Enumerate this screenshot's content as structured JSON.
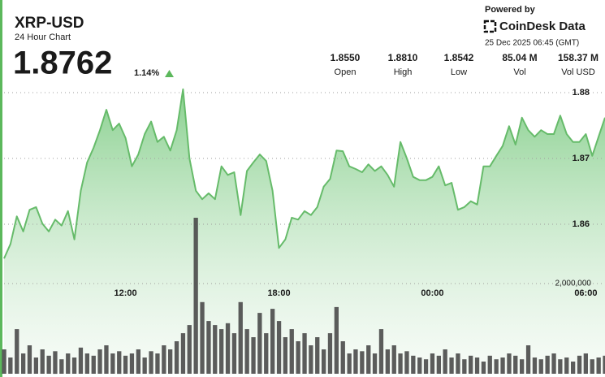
{
  "header": {
    "symbol": "XRP-USD",
    "subtitle": "24 Hour Chart",
    "price": "1.8762",
    "change": "1.14%"
  },
  "stats": [
    {
      "value": "1.8550",
      "label": "Open"
    },
    {
      "value": "1.8810",
      "label": "High"
    },
    {
      "value": "1.8542",
      "label": "Low"
    },
    {
      "value": "85.04 M",
      "label": "Vol"
    },
    {
      "value": "158.37 M",
      "label": "Vol USD"
    }
  ],
  "branding": {
    "powered_by": "Powered by",
    "brand": "CoinDesk Data",
    "timestamp": "25 Dec 2025 06:45 (GMT)"
  },
  "chart_data": {
    "type": "line",
    "x": [
      7.25,
      7.5,
      7.75,
      8,
      8.25,
      8.5,
      8.75,
      9,
      9.25,
      9.5,
      9.75,
      10,
      10.25,
      10.5,
      10.75,
      11,
      11.25,
      11.5,
      11.75,
      12,
      12.25,
      12.5,
      12.75,
      13,
      13.25,
      13.5,
      13.75,
      14,
      14.25,
      14.5,
      14.75,
      15,
      15.25,
      15.5,
      15.75,
      16,
      16.25,
      16.5,
      16.75,
      17,
      17.25,
      17.5,
      17.75,
      18,
      18.25,
      18.5,
      18.75,
      19,
      19.25,
      19.5,
      19.75,
      20,
      20.25,
      20.5,
      20.75,
      21,
      21.25,
      21.5,
      21.75,
      22,
      22.25,
      22.5,
      22.75,
      23,
      23.25,
      23.5,
      23.75,
      24,
      24.25,
      24.5,
      24.75,
      25,
      25.25,
      25.5,
      25.75,
      26,
      26.25,
      26.5,
      26.75,
      27,
      27.25,
      27.5,
      27.75,
      28,
      28.25,
      28.5,
      28.75,
      29,
      29.25,
      29.5,
      29.75,
      30,
      30.25,
      30.5,
      30.75
    ],
    "xlim": [
      7.25,
      30.75
    ],
    "xticks": [
      {
        "value": 12,
        "label": "12:00"
      },
      {
        "value": 18,
        "label": "18:00"
      },
      {
        "value": 24,
        "label": "00:00"
      },
      {
        "value": 30,
        "label": "06:00"
      }
    ],
    "ylim": [
      1.85,
      1.89
    ],
    "yticks": [
      1.86,
      1.87,
      1.88
    ],
    "y2lim": [
      0,
      4000000
    ],
    "y2ticks": [
      {
        "value": 2000000,
        "label": "2,000,000"
      }
    ],
    "grid": true,
    "series": [
      {
        "type": "line",
        "color": "#66bb6a",
        "values": [
          1.8548,
          1.857,
          1.8612,
          1.8589,
          1.8622,
          1.8626,
          1.8601,
          1.8589,
          1.8607,
          1.8598,
          1.862,
          1.8577,
          1.8651,
          1.8694,
          1.8716,
          1.8743,
          1.8774,
          1.8743,
          1.8753,
          1.8731,
          1.8688,
          1.8706,
          1.8737,
          1.8756,
          1.8725,
          1.8733,
          1.8712,
          1.8743,
          1.8805,
          1.87,
          1.8651,
          1.8638,
          1.8647,
          1.8638,
          1.8688,
          1.8675,
          1.8679,
          1.8614,
          1.8681,
          1.8694,
          1.8706,
          1.8696,
          1.8651,
          1.8564,
          1.8577,
          1.861,
          1.8607,
          1.862,
          1.8614,
          1.8626,
          1.8657,
          1.8669,
          1.8712,
          1.8711,
          1.8688,
          1.8684,
          1.8679,
          1.8691,
          1.8681,
          1.8688,
          1.8675,
          1.8657,
          1.8725,
          1.87,
          1.8672,
          1.8667,
          1.8667,
          1.8672,
          1.8688,
          1.8659,
          1.8663,
          1.8622,
          1.8626,
          1.8635,
          1.863,
          1.8688,
          1.8688,
          1.8704,
          1.8719,
          1.8749,
          1.8721,
          1.8762,
          1.8743,
          1.8733,
          1.8743,
          1.8737,
          1.8737,
          1.8765,
          1.8737,
          1.8725,
          1.8725,
          1.8737,
          1.8704,
          1.8733,
          1.8762
        ]
      },
      {
        "type": "bar",
        "axis": "y2",
        "color": "#4a4a4a",
        "values": [
          540000,
          360000,
          990000,
          450000,
          630000,
          360000,
          540000,
          400000,
          500000,
          320000,
          450000,
          360000,
          580000,
          450000,
          400000,
          540000,
          630000,
          450000,
          500000,
          400000,
          450000,
          540000,
          360000,
          500000,
          450000,
          630000,
          540000,
          720000,
          900000,
          1080000,
          3460000,
          1590000,
          1170000,
          1080000,
          990000,
          1120000,
          900000,
          1590000,
          990000,
          810000,
          1350000,
          900000,
          1440000,
          1170000,
          810000,
          990000,
          720000,
          900000,
          630000,
          810000,
          540000,
          900000,
          1480000,
          720000,
          450000,
          540000,
          500000,
          630000,
          450000,
          990000,
          540000,
          630000,
          450000,
          500000,
          400000,
          360000,
          320000,
          450000,
          400000,
          540000,
          360000,
          450000,
          320000,
          400000,
          360000,
          270000,
          400000,
          320000,
          360000,
          450000,
          400000,
          320000,
          630000,
          360000,
          320000,
          400000,
          450000,
          320000,
          360000,
          270000,
          400000,
          450000,
          320000,
          360000,
          400000
        ]
      }
    ]
  }
}
